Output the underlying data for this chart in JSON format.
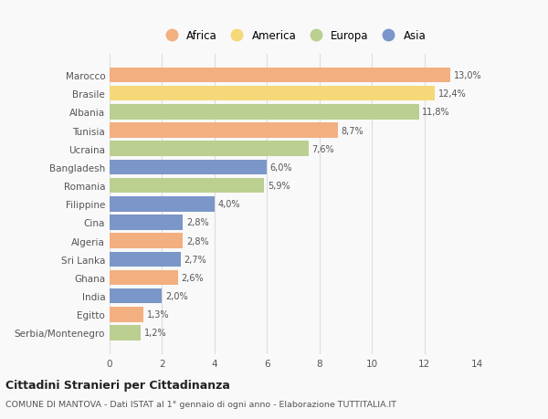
{
  "countries": [
    "Marocco",
    "Brasile",
    "Albania",
    "Tunisia",
    "Ucraina",
    "Bangladesh",
    "Romania",
    "Filippine",
    "Cina",
    "Algeria",
    "Sri Lanka",
    "Ghana",
    "India",
    "Egitto",
    "Serbia/Montenegro"
  ],
  "values": [
    13.0,
    12.4,
    11.8,
    8.7,
    7.6,
    6.0,
    5.9,
    4.0,
    2.8,
    2.8,
    2.7,
    2.6,
    2.0,
    1.3,
    1.2
  ],
  "labels": [
    "13,0%",
    "12,4%",
    "11,8%",
    "8,7%",
    "7,6%",
    "6,0%",
    "5,9%",
    "4,0%",
    "2,8%",
    "2,8%",
    "2,7%",
    "2,6%",
    "2,0%",
    "1,3%",
    "1,2%"
  ],
  "continents": [
    "Africa",
    "America",
    "Europa",
    "Africa",
    "Europa",
    "Asia",
    "Europa",
    "Asia",
    "Asia",
    "Africa",
    "Asia",
    "Africa",
    "Asia",
    "Africa",
    "Europa"
  ],
  "colors": {
    "Africa": "#F2AF80",
    "America": "#F5D878",
    "Europa": "#BACF90",
    "Asia": "#7B96C8"
  },
  "legend_order": [
    "Africa",
    "America",
    "Europa",
    "Asia"
  ],
  "title": "Cittadini Stranieri per Cittadinanza",
  "subtitle": "COMUNE DI MANTOVA - Dati ISTAT al 1° gennaio di ogni anno - Elaborazione TUTTITALIA.IT",
  "xlim": [
    0,
    14
  ],
  "xticks": [
    0,
    2,
    4,
    6,
    8,
    10,
    12,
    14
  ],
  "bg_color": "#f9f9f9",
  "bar_height": 0.82,
  "grid_color": "#dddddd"
}
